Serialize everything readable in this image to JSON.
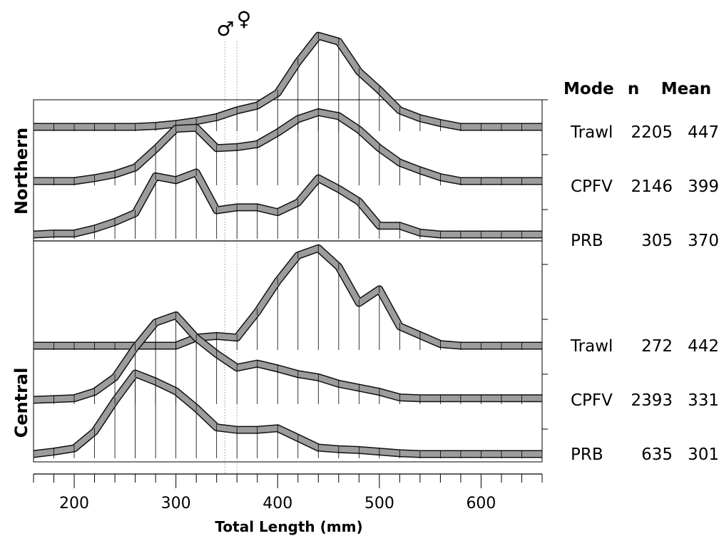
{
  "chart_data": {
    "type": "line",
    "xlabel": "Total Length (mm)",
    "xlim": [
      160,
      660
    ],
    "xticks": [
      200,
      300,
      400,
      500,
      600
    ],
    "x": [
      160,
      180,
      200,
      220,
      240,
      260,
      280,
      300,
      320,
      340,
      360,
      380,
      400,
      420,
      440,
      460,
      480,
      500,
      520,
      540,
      560,
      580,
      600,
      620,
      640,
      660
    ],
    "markers": {
      "male": {
        "symbol": "♂",
        "x": 348
      },
      "female": {
        "symbol": "♀",
        "x": 360
      }
    },
    "table_header": {
      "mode": "Mode",
      "n": "n",
      "mean": "Mean"
    },
    "regions": [
      {
        "name": "Northern",
        "series": [
          {
            "mode": "Trawl",
            "n": "2205",
            "mean": "447",
            "values": [
              0,
              0,
              0,
              0,
              0,
              0,
              1,
              3,
              6,
              10,
              17,
              22,
              35,
              67,
              94,
              88,
              57,
              38,
              17,
              9,
              4,
              0,
              0,
              0,
              0,
              0
            ]
          },
          {
            "mode": "CPFV",
            "n": "2146",
            "mean": "399",
            "values": [
              0,
              0,
              0,
              3,
              7,
              14,
              33,
              54,
              55,
              34,
              35,
              38,
              50,
              64,
              71,
              67,
              53,
              34,
              19,
              11,
              4,
              0,
              0,
              0,
              0,
              0
            ]
          },
          {
            "mode": "PRB",
            "n": "305",
            "mean": "370",
            "values": [
              0,
              1,
              1,
              6,
              13,
              22,
              60,
              56,
              64,
              25,
              28,
              28,
              23,
              33,
              58,
              47,
              34,
              9,
              9,
              2,
              0,
              0,
              0,
              0,
              0,
              0
            ]
          }
        ]
      },
      {
        "name": "Central",
        "series": [
          {
            "mode": "Trawl",
            "n": "272",
            "mean": "442",
            "values": [
              0,
              0,
              0,
              0,
              0,
              0,
              0,
              0,
              10,
              12,
              10,
              42,
              80,
              112,
              121,
              98,
              53,
              70,
              24,
              13,
              2,
              0,
              0,
              0,
              0,
              0
            ]
          },
          {
            "mode": "CPFV",
            "n": "2393",
            "mean": "331",
            "values": [
              0,
              1,
              2,
              10,
              28,
              65,
              96,
              105,
              77,
              57,
              40,
              45,
              39,
              32,
              28,
              20,
              15,
              10,
              3,
              2,
              2,
              2,
              2,
              2,
              2,
              2
            ]
          },
          {
            "mode": "PRB",
            "n": "635",
            "mean": "301",
            "values": [
              0,
              3,
              7,
              28,
              66,
              100,
              90,
              78,
              57,
              33,
              30,
              30,
              32,
              20,
              8,
              6,
              5,
              3,
              1,
              0,
              0,
              0,
              0,
              0,
              0,
              0
            ]
          }
        ]
      }
    ]
  }
}
